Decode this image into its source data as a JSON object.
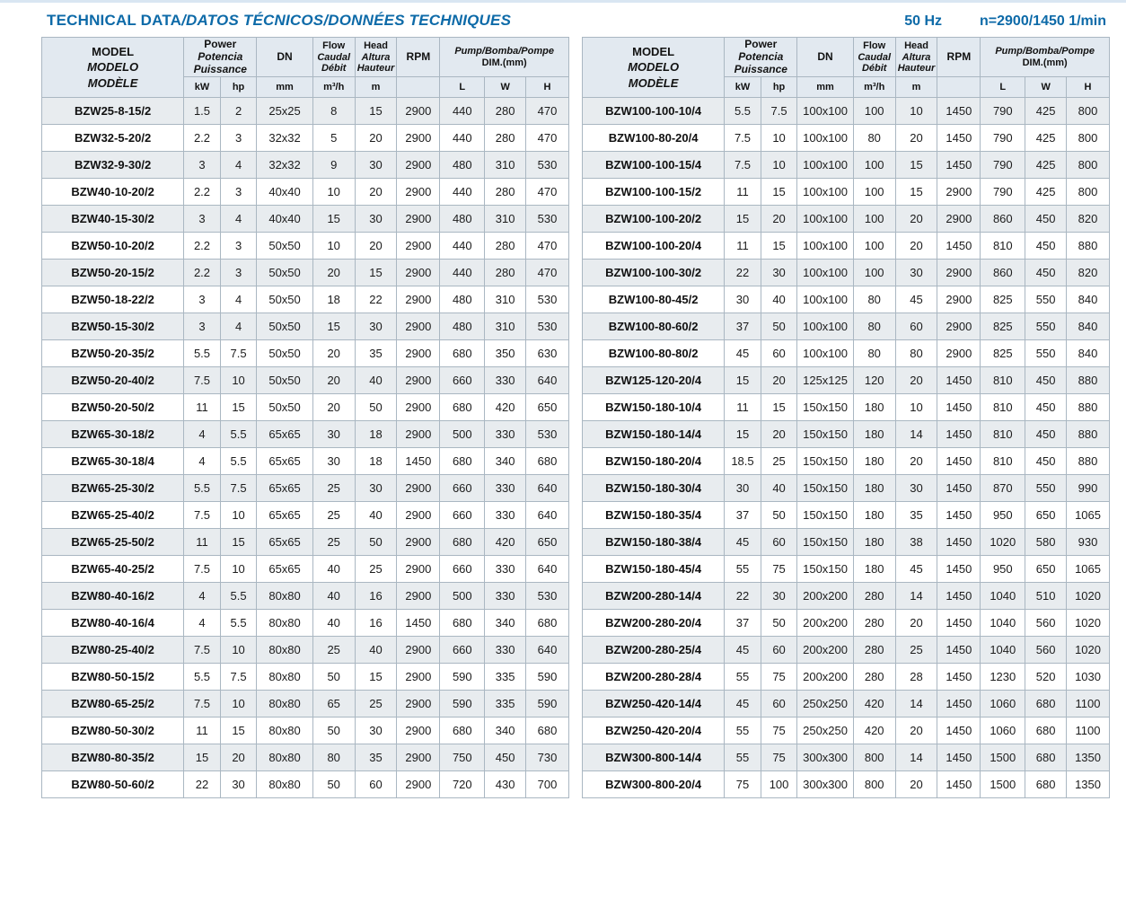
{
  "header": {
    "title_en": "TECHNICAL DATA",
    "title_intl": "/DATOS TÉCNICOS/DONNÉES TECHNIQUES",
    "frequency": "50 Hz",
    "speed": "n=2900/1450 1/min"
  },
  "cols": {
    "model": [
      "MODEL",
      "MODELO",
      "MODÈLE"
    ],
    "power": [
      "Power",
      "Potencia",
      "Puissance"
    ],
    "dn": "DN",
    "flow": [
      "Flow",
      "Caudal",
      "Débit"
    ],
    "head": [
      "Head",
      "Altura",
      "Hauteur"
    ],
    "rpm": "RPM",
    "dim1": "Pump/Bomba/Pompe",
    "dim2": "DIM.(mm)",
    "units": {
      "kw": "kW",
      "hp": "hp",
      "mm": "mm",
      "flow": "m³/h",
      "head": "m",
      "l": "L",
      "w": "W",
      "h": "H"
    }
  },
  "left_table": {
    "rows": [
      [
        "BZW25-8-15/2",
        "1.5",
        "2",
        "25x25",
        "8",
        "15",
        "2900",
        "440",
        "280",
        "470"
      ],
      [
        "BZW32-5-20/2",
        "2.2",
        "3",
        "32x32",
        "5",
        "20",
        "2900",
        "440",
        "280",
        "470"
      ],
      [
        "BZW32-9-30/2",
        "3",
        "4",
        "32x32",
        "9",
        "30",
        "2900",
        "480",
        "310",
        "530"
      ],
      [
        "BZW40-10-20/2",
        "2.2",
        "3",
        "40x40",
        "10",
        "20",
        "2900",
        "440",
        "280",
        "470"
      ],
      [
        "BZW40-15-30/2",
        "3",
        "4",
        "40x40",
        "15",
        "30",
        "2900",
        "480",
        "310",
        "530"
      ],
      [
        "BZW50-10-20/2",
        "2.2",
        "3",
        "50x50",
        "10",
        "20",
        "2900",
        "440",
        "280",
        "470"
      ],
      [
        "BZW50-20-15/2",
        "2.2",
        "3",
        "50x50",
        "20",
        "15",
        "2900",
        "440",
        "280",
        "470"
      ],
      [
        "BZW50-18-22/2",
        "3",
        "4",
        "50x50",
        "18",
        "22",
        "2900",
        "480",
        "310",
        "530"
      ],
      [
        "BZW50-15-30/2",
        "3",
        "4",
        "50x50",
        "15",
        "30",
        "2900",
        "480",
        "310",
        "530"
      ],
      [
        "BZW50-20-35/2",
        "5.5",
        "7.5",
        "50x50",
        "20",
        "35",
        "2900",
        "680",
        "350",
        "630"
      ],
      [
        "BZW50-20-40/2",
        "7.5",
        "10",
        "50x50",
        "20",
        "40",
        "2900",
        "660",
        "330",
        "640"
      ],
      [
        "BZW50-20-50/2",
        "11",
        "15",
        "50x50",
        "20",
        "50",
        "2900",
        "680",
        "420",
        "650"
      ],
      [
        "BZW65-30-18/2",
        "4",
        "5.5",
        "65x65",
        "30",
        "18",
        "2900",
        "500",
        "330",
        "530"
      ],
      [
        "BZW65-30-18/4",
        "4",
        "5.5",
        "65x65",
        "30",
        "18",
        "1450",
        "680",
        "340",
        "680"
      ],
      [
        "BZW65-25-30/2",
        "5.5",
        "7.5",
        "65x65",
        "25",
        "30",
        "2900",
        "660",
        "330",
        "640"
      ],
      [
        "BZW65-25-40/2",
        "7.5",
        "10",
        "65x65",
        "25",
        "40",
        "2900",
        "660",
        "330",
        "640"
      ],
      [
        "BZW65-25-50/2",
        "11",
        "15",
        "65x65",
        "25",
        "50",
        "2900",
        "680",
        "420",
        "650"
      ],
      [
        "BZW65-40-25/2",
        "7.5",
        "10",
        "65x65",
        "40",
        "25",
        "2900",
        "660",
        "330",
        "640"
      ],
      [
        "BZW80-40-16/2",
        "4",
        "5.5",
        "80x80",
        "40",
        "16",
        "2900",
        "500",
        "330",
        "530"
      ],
      [
        "BZW80-40-16/4",
        "4",
        "5.5",
        "80x80",
        "40",
        "16",
        "1450",
        "680",
        "340",
        "680"
      ],
      [
        "BZW80-25-40/2",
        "7.5",
        "10",
        "80x80",
        "25",
        "40",
        "2900",
        "660",
        "330",
        "640"
      ],
      [
        "BZW80-50-15/2",
        "5.5",
        "7.5",
        "80x80",
        "50",
        "15",
        "2900",
        "590",
        "335",
        "590"
      ],
      [
        "BZW80-65-25/2",
        "7.5",
        "10",
        "80x80",
        "65",
        "25",
        "2900",
        "590",
        "335",
        "590"
      ],
      [
        "BZW80-50-30/2",
        "11",
        "15",
        "80x80",
        "50",
        "30",
        "2900",
        "680",
        "340",
        "680"
      ],
      [
        "BZW80-80-35/2",
        "15",
        "20",
        "80x80",
        "80",
        "35",
        "2900",
        "750",
        "450",
        "730"
      ],
      [
        "BZW80-50-60/2",
        "22",
        "30",
        "80x80",
        "50",
        "60",
        "2900",
        "720",
        "430",
        "700"
      ]
    ]
  },
  "right_table": {
    "rows": [
      [
        "BZW100-100-10/4",
        "5.5",
        "7.5",
        "100x100",
        "100",
        "10",
        "1450",
        "790",
        "425",
        "800"
      ],
      [
        "BZW100-80-20/4",
        "7.5",
        "10",
        "100x100",
        "80",
        "20",
        "1450",
        "790",
        "425",
        "800"
      ],
      [
        "BZW100-100-15/4",
        "7.5",
        "10",
        "100x100",
        "100",
        "15",
        "1450",
        "790",
        "425",
        "800"
      ],
      [
        "BZW100-100-15/2",
        "11",
        "15",
        "100x100",
        "100",
        "15",
        "2900",
        "790",
        "425",
        "800"
      ],
      [
        "BZW100-100-20/2",
        "15",
        "20",
        "100x100",
        "100",
        "20",
        "2900",
        "860",
        "450",
        "820"
      ],
      [
        "BZW100-100-20/4",
        "11",
        "15",
        "100x100",
        "100",
        "20",
        "1450",
        "810",
        "450",
        "880"
      ],
      [
        "BZW100-100-30/2",
        "22",
        "30",
        "100x100",
        "100",
        "30",
        "2900",
        "860",
        "450",
        "820"
      ],
      [
        "BZW100-80-45/2",
        "30",
        "40",
        "100x100",
        "80",
        "45",
        "2900",
        "825",
        "550",
        "840"
      ],
      [
        "BZW100-80-60/2",
        "37",
        "50",
        "100x100",
        "80",
        "60",
        "2900",
        "825",
        "550",
        "840"
      ],
      [
        "BZW100-80-80/2",
        "45",
        "60",
        "100x100",
        "80",
        "80",
        "2900",
        "825",
        "550",
        "840"
      ],
      [
        "BZW125-120-20/4",
        "15",
        "20",
        "125x125",
        "120",
        "20",
        "1450",
        "810",
        "450",
        "880"
      ],
      [
        "BZW150-180-10/4",
        "11",
        "15",
        "150x150",
        "180",
        "10",
        "1450",
        "810",
        "450",
        "880"
      ],
      [
        "BZW150-180-14/4",
        "15",
        "20",
        "150x150",
        "180",
        "14",
        "1450",
        "810",
        "450",
        "880"
      ],
      [
        "BZW150-180-20/4",
        "18.5",
        "25",
        "150x150",
        "180",
        "20",
        "1450",
        "810",
        "450",
        "880"
      ],
      [
        "BZW150-180-30/4",
        "30",
        "40",
        "150x150",
        "180",
        "30",
        "1450",
        "870",
        "550",
        "990"
      ],
      [
        "BZW150-180-35/4",
        "37",
        "50",
        "150x150",
        "180",
        "35",
        "1450",
        "950",
        "650",
        "1065"
      ],
      [
        "BZW150-180-38/4",
        "45",
        "60",
        "150x150",
        "180",
        "38",
        "1450",
        "1020",
        "580",
        "930"
      ],
      [
        "BZW150-180-45/4",
        "55",
        "75",
        "150x150",
        "180",
        "45",
        "1450",
        "950",
        "650",
        "1065"
      ],
      [
        "BZW200-280-14/4",
        "22",
        "30",
        "200x200",
        "280",
        "14",
        "1450",
        "1040",
        "510",
        "1020"
      ],
      [
        "BZW200-280-20/4",
        "37",
        "50",
        "200x200",
        "280",
        "20",
        "1450",
        "1040",
        "560",
        "1020"
      ],
      [
        "BZW200-280-25/4",
        "45",
        "60",
        "200x200",
        "280",
        "25",
        "1450",
        "1040",
        "560",
        "1020"
      ],
      [
        "BZW200-280-28/4",
        "55",
        "75",
        "200x200",
        "280",
        "28",
        "1450",
        "1230",
        "520",
        "1030"
      ],
      [
        "BZW250-420-14/4",
        "45",
        "60",
        "250x250",
        "420",
        "14",
        "1450",
        "1060",
        "680",
        "1100"
      ],
      [
        "BZW250-420-20/4",
        "55",
        "75",
        "250x250",
        "420",
        "20",
        "1450",
        "1060",
        "680",
        "1100"
      ],
      [
        "BZW300-800-14/4",
        "55",
        "75",
        "300x300",
        "800",
        "14",
        "1450",
        "1500",
        "680",
        "1350"
      ],
      [
        "BZW300-800-20/4",
        "75",
        "100",
        "300x300",
        "800",
        "20",
        "1450",
        "1500",
        "680",
        "1350"
      ]
    ]
  }
}
